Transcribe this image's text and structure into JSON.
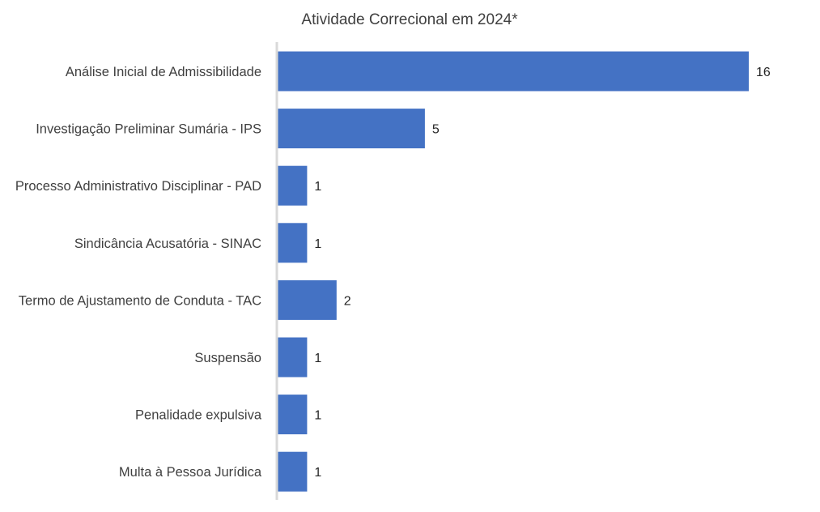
{
  "chart_data": {
    "type": "bar",
    "orientation": "horizontal",
    "title": "Atividade Correcional em 2024*",
    "categories": [
      "Análise Inicial de Admissibilidade",
      "Investigação Preliminar Sumária - IPS",
      "Processo Administrativo Disciplinar - PAD",
      "Sindicância Acusatória - SINAC",
      "Termo de Ajustamento de Conduta - TAC",
      "Suspensão",
      "Penalidade expulsiva",
      "Multa à Pessoa Jurídica"
    ],
    "values": [
      16,
      5,
      1,
      1,
      2,
      1,
      1,
      1
    ],
    "xlim": [
      0,
      16
    ],
    "xlabel": "",
    "ylabel": "",
    "grid": false,
    "legend": "none",
    "data_labels": true,
    "bar_color": "#4472C4",
    "axis_color": "#D9D9D9"
  }
}
